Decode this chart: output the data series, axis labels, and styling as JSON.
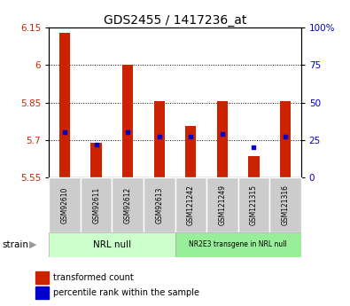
{
  "title": "GDS2455 / 1417236_at",
  "samples": [
    "GSM92610",
    "GSM92611",
    "GSM92612",
    "GSM92613",
    "GSM121242",
    "GSM121249",
    "GSM121315",
    "GSM121316"
  ],
  "transformed_counts": [
    6.13,
    5.69,
    6.0,
    5.857,
    5.755,
    5.857,
    5.635,
    5.857
  ],
  "percentile_ranks": [
    30,
    22,
    30,
    27,
    27,
    29,
    20,
    27
  ],
  "ylim_left": [
    5.55,
    6.15
  ],
  "ylim_right": [
    0,
    100
  ],
  "yticks_left": [
    5.55,
    5.7,
    5.85,
    6.0,
    6.15
  ],
  "yticks_right": [
    0,
    25,
    50,
    75,
    100
  ],
  "ytick_labels_left": [
    "5.55",
    "5.7",
    "5.85",
    "6",
    "6.15"
  ],
  "ytick_labels_right": [
    "0",
    "25",
    "50",
    "75",
    "100%"
  ],
  "bar_color": "#cc2200",
  "dot_color": "#0000cc",
  "group1_label": "NRL null",
  "group2_label": "NR2E3 transgene in NRL null",
  "group1_color": "#ccffcc",
  "group2_color": "#99ee99",
  "group1_indices": [
    0,
    1,
    2,
    3
  ],
  "group2_indices": [
    4,
    5,
    6,
    7
  ],
  "legend_bar_label": "transformed count",
  "legend_dot_label": "percentile rank within the sample",
  "strain_label": "strain",
  "bar_bottom": 5.55,
  "bar_width": 0.35,
  "grid_color": "#000000",
  "tick_label_color_left": "#cc2200",
  "tick_label_color_right": "#0000cc",
  "sample_box_color": "#cccccc"
}
